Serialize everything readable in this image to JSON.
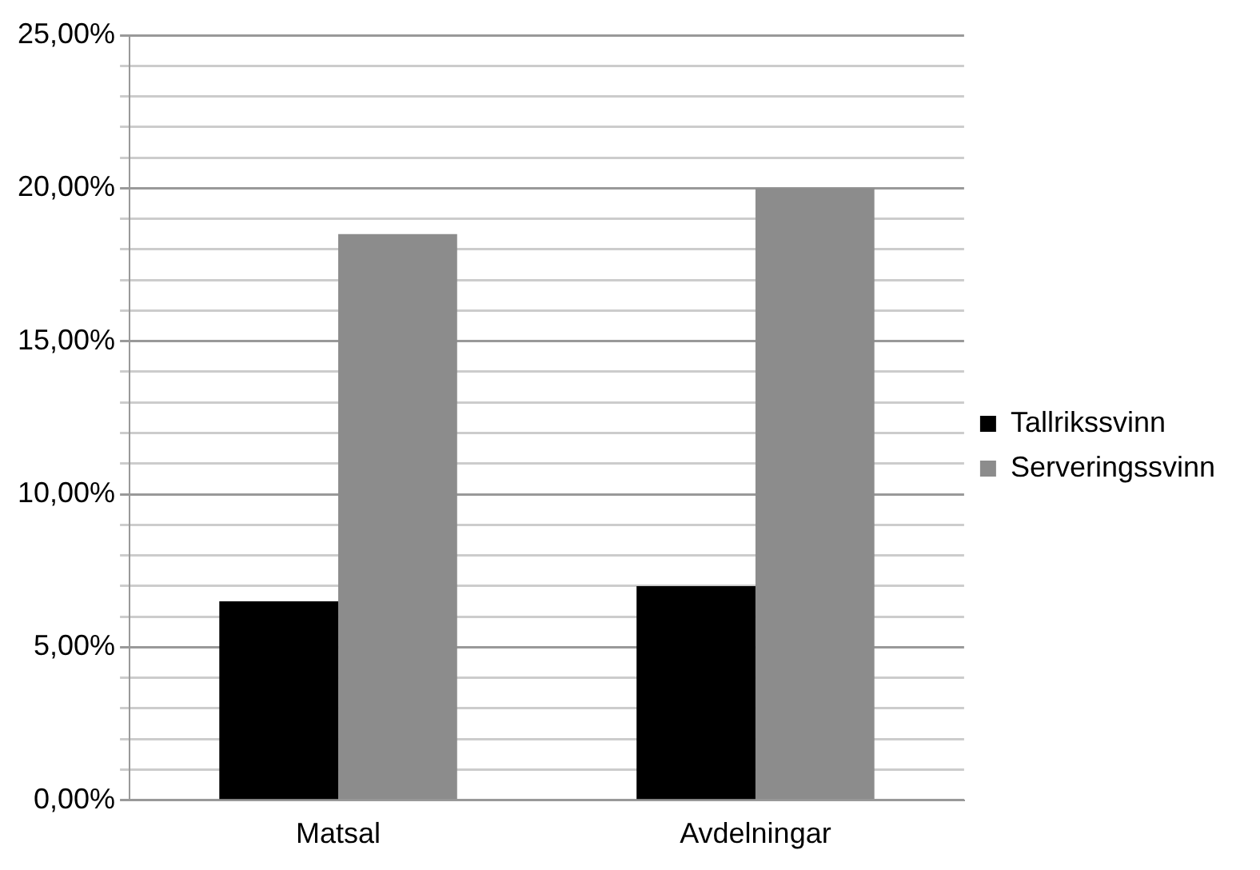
{
  "chart_data": {
    "type": "bar",
    "categories": [
      "Matsal",
      "Avdelningar"
    ],
    "series": [
      {
        "name": "Tallrikssvinn",
        "color": "#000000",
        "values": [
          6.5,
          7.0
        ]
      },
      {
        "name": "Serveringssvinn",
        "color": "#8c8c8c",
        "values": [
          18.5,
          20.0
        ]
      }
    ],
    "ylim": [
      0,
      25
    ],
    "yticks": [
      {
        "value": 0,
        "label": "0,00%"
      },
      {
        "value": 1,
        "label": null
      },
      {
        "value": 2,
        "label": null
      },
      {
        "value": 3,
        "label": null
      },
      {
        "value": 4,
        "label": null
      },
      {
        "value": 5,
        "label": "5,00%"
      },
      {
        "value": 6,
        "label": null
      },
      {
        "value": 7,
        "label": null
      },
      {
        "value": 8,
        "label": null
      },
      {
        "value": 9,
        "label": null
      },
      {
        "value": 10,
        "label": "10,00%"
      },
      {
        "value": 11,
        "label": null
      },
      {
        "value": 12,
        "label": null
      },
      {
        "value": 13,
        "label": null
      },
      {
        "value": 14,
        "label": null
      },
      {
        "value": 15,
        "label": "15,00%"
      },
      {
        "value": 16,
        "label": null
      },
      {
        "value": 17,
        "label": null
      },
      {
        "value": 18,
        "label": null
      },
      {
        "value": 19,
        "label": null
      },
      {
        "value": 20,
        "label": "20,00%"
      },
      {
        "value": 21,
        "label": null
      },
      {
        "value": 22,
        "label": null
      },
      {
        "value": 23,
        "label": null
      },
      {
        "value": 24,
        "label": null
      },
      {
        "value": 25,
        "label": "25,00%"
      }
    ],
    "grid": "y",
    "legend": "right"
  }
}
